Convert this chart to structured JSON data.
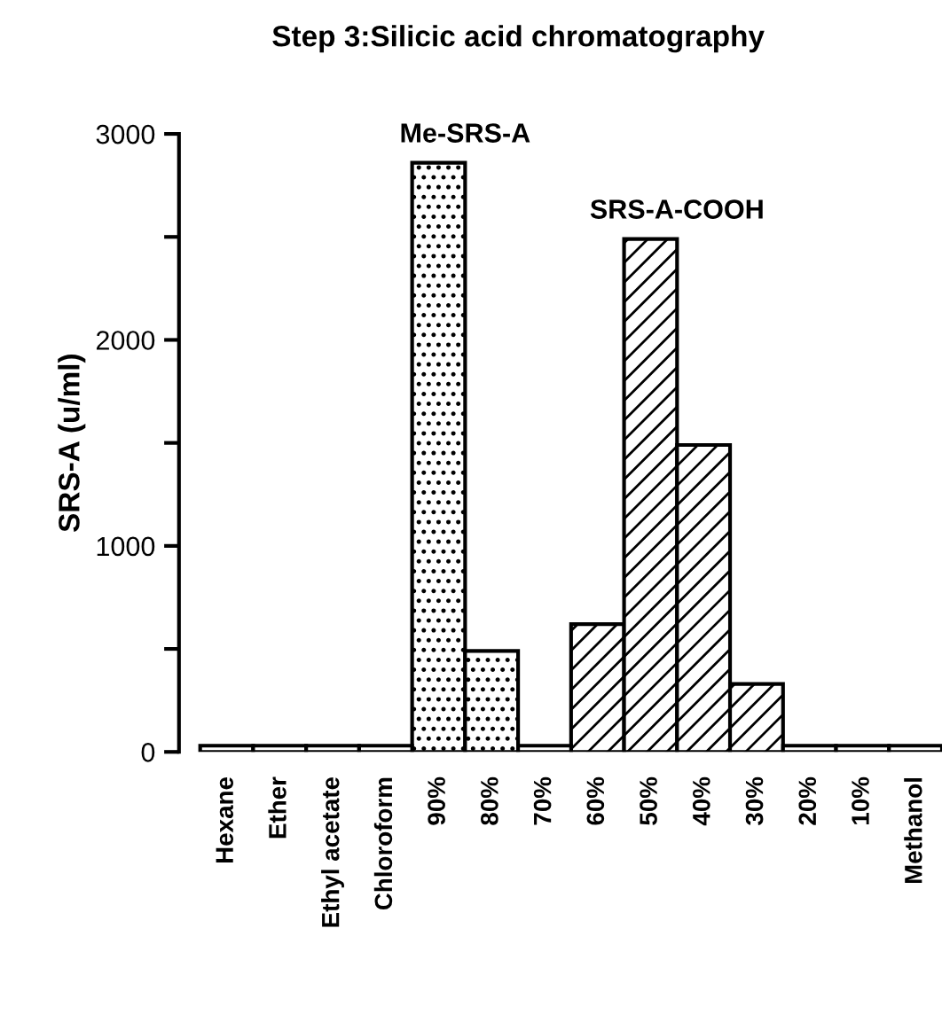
{
  "chart_data": {
    "type": "bar",
    "title": "Step 3:Silicic acid chromatography",
    "ylabel": "SRS-A (u/ml)",
    "categories": [
      "Hexane",
      "Ether",
      "Ethyl acetate",
      "Chloroform",
      "90%",
      "80%",
      "70%",
      "60%",
      "50%",
      "40%",
      "30%",
      "20%",
      "10%",
      "Methanol"
    ],
    "series": [
      {
        "name": "Me-SRS-A",
        "color": "#000000",
        "values": [
          null,
          null,
          null,
          null,
          2860,
          490,
          null,
          null,
          null,
          null,
          null,
          null,
          null,
          null
        ]
      },
      {
        "name": "SRS-A-COOH",
        "color": "#000000",
        "values": [
          null,
          null,
          null,
          null,
          null,
          null,
          null,
          620,
          2490,
          1490,
          330,
          null,
          null,
          null
        ]
      },
      {
        "color": "#000000",
        "values": [
          30,
          30,
          30,
          30,
          null,
          null,
          30,
          null,
          null,
          null,
          null,
          30,
          30,
          30
        ]
      }
    ],
    "ylim": [
      0,
      3000
    ],
    "yticks": [
      0,
      {
        "value": 500,
        "label": null
      },
      1000,
      {
        "value": 1500,
        "label": null
      },
      2000,
      {
        "value": 2500,
        "label": null
      },
      3000
    ],
    "grid": false,
    "legend": false
  }
}
